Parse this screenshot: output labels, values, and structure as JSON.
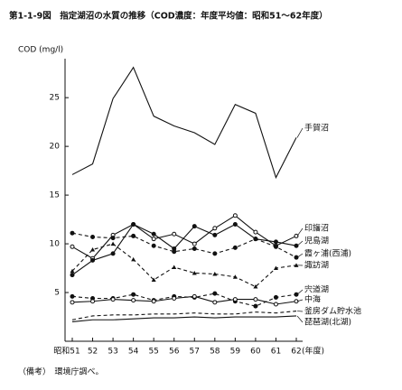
{
  "chart_data": {
    "type": "line",
    "title": "第1-1-9図　指定湖沼の水質の推移（COD濃度：年度平均値：昭和51～62年度）",
    "y_label": "COD (mg/l)",
    "x_unit": "(年度)",
    "note": "（備考）　環境庁調べ。",
    "categories": [
      "昭和51",
      "52",
      "53",
      "54",
      "55",
      "56",
      "57",
      "58",
      "59",
      "60",
      "61",
      "62"
    ],
    "ylim": [
      0,
      29
    ],
    "yticks": [
      5,
      10,
      15,
      20,
      25
    ],
    "series": [
      {
        "name": "手賀沼",
        "color": "#111",
        "style": "solid",
        "marker": "none",
        "values": [
          17.1,
          18.2,
          24.9,
          28.1,
          23.1,
          22.1,
          21.4,
          20.2,
          24.3,
          23.4,
          16.8,
          20.9
        ]
      },
      {
        "name": "印旛沼",
        "color": "#111",
        "style": "solid",
        "marker": "open",
        "values": [
          9.7,
          8.5,
          10.9,
          12.0,
          10.5,
          11.0,
          10.0,
          11.6,
          12.9,
          11.2,
          9.8,
          10.8
        ]
      },
      {
        "name": "児島湖",
        "color": "#111",
        "style": "solid",
        "marker": "filled",
        "values": [
          6.8,
          8.3,
          9.0,
          12.0,
          11.0,
          9.5,
          11.8,
          10.9,
          12.0,
          10.5,
          10.2,
          9.8
        ]
      },
      {
        "name": "霞ヶ浦(西浦)",
        "color": "#111",
        "style": "dashed",
        "marker": "filled",
        "values": [
          11.1,
          10.7,
          10.6,
          10.8,
          9.8,
          9.2,
          9.5,
          9.0,
          9.6,
          10.5,
          9.7,
          8.6
        ]
      },
      {
        "name": "諏訪湖",
        "color": "#111",
        "style": "dashed",
        "marker": "triangle",
        "values": [
          7.2,
          9.4,
          10.0,
          8.4,
          6.3,
          7.6,
          7.0,
          6.9,
          6.6,
          5.6,
          7.5,
          7.8
        ]
      },
      {
        "name": "宍道湖",
        "color": "#111",
        "style": "dashed",
        "marker": "filled",
        "values": [
          4.6,
          4.4,
          4.4,
          4.8,
          4.2,
          4.6,
          4.5,
          4.9,
          4.1,
          3.6,
          4.5,
          4.8
        ]
      },
      {
        "name": "中海",
        "color": "#111",
        "style": "solid",
        "marker": "open",
        "values": [
          4.0,
          4.1,
          4.3,
          4.2,
          4.1,
          4.4,
          4.6,
          4.0,
          4.3,
          4.3,
          3.8,
          4.1
        ]
      },
      {
        "name": "釜房ダム貯水池",
        "color": "#111",
        "style": "dashed",
        "marker": "none",
        "values": [
          2.2,
          2.6,
          2.7,
          2.7,
          2.8,
          2.8,
          2.9,
          2.8,
          2.8,
          3.0,
          2.9,
          3.1
        ]
      },
      {
        "name": "琵琶湖(北湖)",
        "color": "#111",
        "style": "solid",
        "marker": "none",
        "values": [
          2.0,
          2.2,
          2.2,
          2.3,
          2.4,
          2.4,
          2.5,
          2.4,
          2.5,
          2.5,
          2.5,
          2.6
        ]
      }
    ]
  }
}
